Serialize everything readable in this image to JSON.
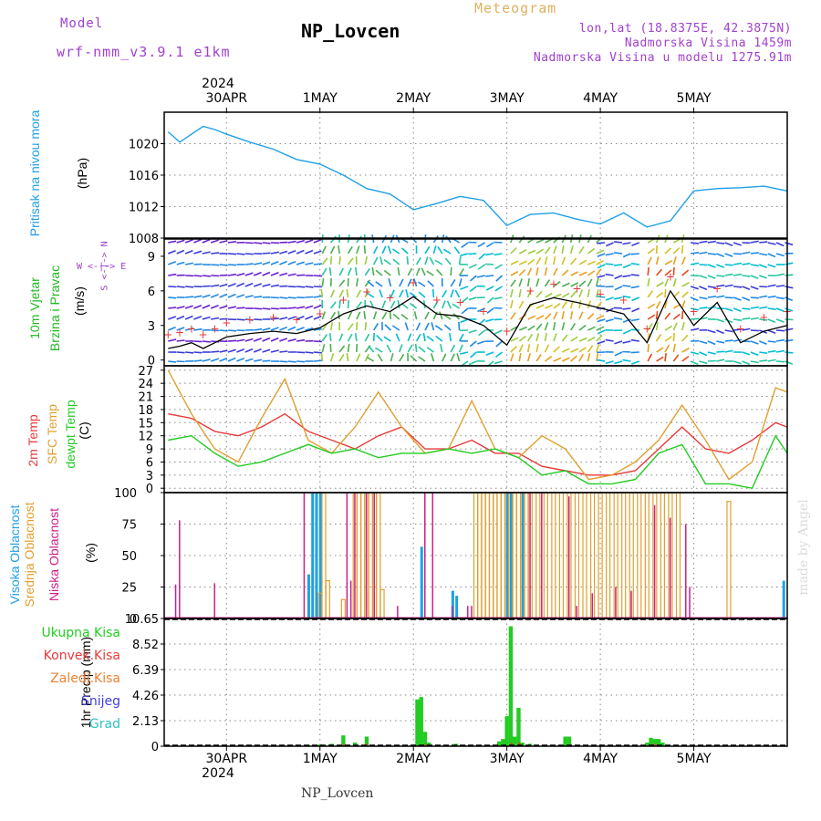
{
  "header": {
    "model_label": "Model",
    "model_name": "wrf-nmm_v3.9.1 e1km",
    "title": "NP_Lovcen",
    "meteogram_label": "Meteogram",
    "lonlat": "lon,lat (18.8375E, 42.3875N)",
    "altitude": "Nadmorska Visina 1459m",
    "model_altitude": "Nadmorska Visina u modelu 1275.91m",
    "footer": "NP_Lovcen",
    "watermark": "made by Angel"
  },
  "colors": {
    "pressure": "#1ea0e6",
    "wind_label": "#22b822",
    "temp2m": "#e83a3a",
    "sfc_temp": "#e0a030",
    "dewpoint": "#22cc22",
    "high_cloud": "#1ea0e6",
    "mid_cloud": "#e0a030",
    "low_cloud": "#cc1f8a",
    "total_precip": "#22cc22",
    "conv_precip": "#e83a3a",
    "frozen_precip": "#f08030",
    "snow": "#4040e0",
    "graupel": "#30c0c0",
    "header_purple": "#a040d0",
    "meteogram_orange": "#e0b060"
  },
  "top_axis": {
    "year": "2024",
    "dates": [
      "30APR",
      "1MAY",
      "2MAY",
      "3MAY",
      "4MAY",
      "5MAY"
    ]
  },
  "bottom_axis": {
    "dates": [
      "30APR",
      "1MAY",
      "2MAY",
      "3MAY",
      "4MAY",
      "5MAY"
    ],
    "year": "2024"
  },
  "panels": {
    "pressure": {
      "label": "Pritisak na nivou mora",
      "unit": "(hPa)"
    },
    "wind": {
      "label1": "10m Vjetar",
      "label2": "Brzina i Pravac",
      "unit": "(m/s)",
      "compass": "W <-|-> E",
      "compass_v": "S <-|-> N"
    },
    "temp": {
      "label1": "2m Temp",
      "label2": "SFC Temp",
      "label3": "dewpt Temp",
      "unit": "(C)"
    },
    "cloud": {
      "label1": "Visoka Oblacnost",
      "label2": "Srednja Oblacnost",
      "label3": "Niska Oblacnost",
      "unit": "(%)"
    },
    "precip": {
      "unit": "1hr Precip (mm)",
      "legend": [
        "Ukupna Kisa",
        "Konvek.Kisa",
        "Zaledj.Kisa",
        "Snijeg",
        "Grad"
      ]
    }
  },
  "chart_data": [
    {
      "type": "line",
      "title": "",
      "ylabel": "Pritisak na nivou mora (hPa)",
      "ylim": [
        1008,
        1024
      ],
      "yticks": [
        1008,
        1012,
        1016,
        1020
      ],
      "x_unit": "hours since 30APR 00UTC",
      "series": [
        {
          "name": "Pritisak na nivou mora",
          "x": [
            -15,
            -12,
            -9,
            -6,
            -3,
            0,
            6,
            12,
            18,
            24,
            30,
            36,
            42,
            48,
            54,
            60,
            66,
            72,
            78,
            84,
            90,
            96,
            102,
            108,
            114,
            120,
            126,
            132,
            138,
            144
          ],
          "y": [
            1021.5,
            1020.2,
            1021.2,
            1022.2,
            1021.8,
            1021.2,
            1020.2,
            1019.3,
            1018.0,
            1017.4,
            1016.0,
            1014.3,
            1013.6,
            1011.6,
            1012.4,
            1013.3,
            1012.8,
            1009.6,
            1011.0,
            1011.2,
            1010.4,
            1009.8,
            1011.2,
            1009.4,
            1010.2,
            1014.0,
            1014.3,
            1014.4,
            1014.6,
            1014.0
          ]
        }
      ]
    },
    {
      "type": "line",
      "title": "",
      "ylabel": "10m Vjetar Brzina i Pravac (m/s)",
      "ylim": [
        -0.5,
        10.5
      ],
      "yticks": [
        0,
        3,
        6,
        9
      ],
      "x_unit": "hours since 30APR 00UTC",
      "series": [
        {
          "name": "Brzina",
          "x": [
            -15,
            -12,
            -9,
            -6,
            -3,
            0,
            6,
            12,
            18,
            24,
            30,
            36,
            42,
            48,
            54,
            60,
            66,
            72,
            78,
            84,
            90,
            96,
            102,
            108,
            114,
            120,
            126,
            132,
            138,
            144
          ],
          "y": [
            1.0,
            1.2,
            1.5,
            1.0,
            1.5,
            2.0,
            2.3,
            2.5,
            2.3,
            2.8,
            4.0,
            4.7,
            4.2,
            5.5,
            4.0,
            3.8,
            3.0,
            1.3,
            4.8,
            5.4,
            5.0,
            4.5,
            4.0,
            1.5,
            6.0,
            3.0,
            5.0,
            1.5,
            2.5,
            3.0
          ]
        }
      ]
    },
    {
      "type": "line",
      "title": "",
      "ylabel": "Temp (C)",
      "ylim": [
        -1,
        28
      ],
      "yticks": [
        0,
        3,
        6,
        9,
        12,
        15,
        18,
        21,
        24,
        27
      ],
      "x_unit": "hours since 30APR 00UTC",
      "series": [
        {
          "name": "2m Temp",
          "x": [
            -15,
            -9,
            -3,
            3,
            9,
            15,
            21,
            27,
            33,
            39,
            45,
            51,
            57,
            63,
            69,
            75,
            81,
            87,
            93,
            99,
            105,
            111,
            117,
            123,
            129,
            135,
            141,
            144
          ],
          "y": [
            17,
            16,
            13,
            12,
            14,
            17,
            13,
            11,
            9,
            12,
            14,
            9,
            9,
            11,
            8,
            8,
            5,
            4,
            3,
            3,
            4,
            9,
            14,
            9,
            8,
            11,
            15,
            14
          ]
        },
        {
          "name": "SFC Temp",
          "x": [
            -15,
            -9,
            -3,
            3,
            9,
            15,
            21,
            27,
            33,
            39,
            45,
            51,
            57,
            63,
            69,
            75,
            81,
            87,
            93,
            99,
            105,
            111,
            117,
            123,
            129,
            135,
            141,
            144
          ],
          "y": [
            27,
            17,
            9,
            6,
            16,
            25,
            11,
            8,
            14,
            22,
            14,
            8,
            9,
            20,
            9,
            7,
            12,
            9,
            2,
            3,
            6,
            11,
            19,
            11,
            2,
            6,
            23,
            22
          ]
        },
        {
          "name": "dewpt Temp",
          "x": [
            -15,
            -9,
            -3,
            3,
            9,
            15,
            21,
            27,
            33,
            39,
            45,
            51,
            57,
            63,
            69,
            75,
            81,
            87,
            93,
            99,
            105,
            111,
            117,
            123,
            129,
            135,
            141,
            144
          ],
          "y": [
            11,
            12,
            8,
            5,
            6,
            8,
            10,
            8,
            9,
            7,
            8,
            8,
            9,
            8,
            9,
            7,
            3,
            4,
            1,
            1,
            2,
            8,
            10,
            1,
            1,
            0,
            12,
            8
          ]
        }
      ]
    },
    {
      "type": "bar",
      "title": "",
      "ylabel": "Oblacnost (%)",
      "ylim": [
        0,
        100
      ],
      "yticks": [
        0,
        25,
        50,
        75,
        100
      ],
      "x_unit": "hours since 30APR 00UTC",
      "series": [
        {
          "name": "Visoka Oblacnost",
          "x": [
            21,
            22,
            23,
            24,
            50,
            58,
            59,
            72,
            73,
            76,
            143
          ],
          "y": [
            35,
            100,
            100,
            100,
            57,
            22,
            18,
            100,
            100,
            100,
            30
          ]
        },
        {
          "name": "Srednja Oblacnost",
          "x": [
            24,
            25,
            26,
            30,
            33,
            34,
            35,
            36,
            37,
            38,
            39,
            40,
            64,
            65,
            66,
            67,
            68,
            69,
            70,
            71,
            72,
            73,
            74,
            75,
            76,
            77,
            78,
            80,
            82,
            84,
            86,
            88,
            90,
            92,
            94,
            96,
            98,
            100,
            102,
            104,
            106,
            108,
            110,
            112,
            114,
            116,
            129
          ],
          "y": [
            20,
            100,
            30,
            15,
            100,
            100,
            100,
            100,
            100,
            100,
            100,
            23,
            100,
            100,
            100,
            100,
            100,
            100,
            100,
            100,
            100,
            100,
            100,
            100,
            100,
            100,
            100,
            100,
            100,
            100,
            100,
            100,
            100,
            100,
            100,
            100,
            100,
            100,
            100,
            100,
            100,
            100,
            100,
            100,
            100,
            100,
            93
          ]
        },
        {
          "name": "Niska Oblacnost",
          "x": [
            -13,
            -12,
            -3,
            20,
            31,
            32,
            33,
            36,
            38,
            44,
            51,
            53,
            58,
            62,
            63,
            78,
            81,
            88,
            90,
            94,
            100,
            104,
            110,
            114,
            118,
            119
          ],
          "y": [
            27,
            78,
            28,
            100,
            100,
            30,
            100,
            100,
            100,
            10,
            100,
            100,
            10,
            10,
            10,
            100,
            100,
            97,
            10,
            20,
            25,
            22,
            90,
            80,
            75,
            25
          ]
        }
      ]
    },
    {
      "type": "bar",
      "title": "",
      "ylabel": "1hr Precip (mm)",
      "ylim": [
        0,
        10.65
      ],
      "yticks": [
        0,
        2.13,
        4.26,
        6.39,
        8.52,
        10.65
      ],
      "x_unit": "hours since 30APR 00UTC",
      "series": [
        {
          "name": "Ukupna Kisa",
          "x": [
            21,
            24,
            27,
            30,
            33,
            36,
            49,
            50,
            51,
            52,
            59,
            61,
            70,
            71,
            72,
            73,
            74,
            75,
            76,
            78,
            82,
            87,
            88,
            90,
            108,
            109,
            110,
            111,
            112
          ],
          "y": [
            0.1,
            0.15,
            0.2,
            0.9,
            0.3,
            0.8,
            3.9,
            4.1,
            1.2,
            0.3,
            0.2,
            0.1,
            0.4,
            0.6,
            2.5,
            10.0,
            0.8,
            3.2,
            0.3,
            0.2,
            0.1,
            0.8,
            0.8,
            0.1,
            0.3,
            0.7,
            0.6,
            0.6,
            0.3
          ]
        },
        {
          "name": "Konvek.Kisa",
          "x": [
            30,
            36,
            51,
            73,
            75,
            109,
            110
          ],
          "y": [
            0.2,
            0.2,
            0.2,
            0.3,
            0.3,
            0.2,
            0.2
          ]
        }
      ]
    }
  ]
}
